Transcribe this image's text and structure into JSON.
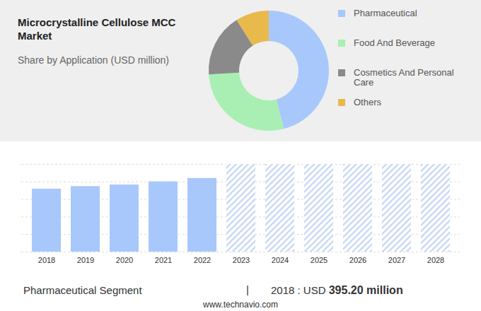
{
  "chart_data": [
    {
      "type": "donut",
      "title": "Microcrystalline Cellulose MCC Market",
      "subtitle": "Share by Application (USD million)",
      "categories": [
        "Pharmaceutical",
        "Food And Beverage",
        "Cosmetics And Personal Care",
        "Others"
      ],
      "values": [
        46,
        28,
        17,
        9
      ],
      "colors": [
        "#a8c8fb",
        "#a9efb3",
        "#8a8a8a",
        "#e8b94b"
      ],
      "legend": "right"
    },
    {
      "type": "bar",
      "categories": [
        "2018",
        "2019",
        "2020",
        "2021",
        "2022",
        "2023",
        "2024",
        "2025",
        "2026",
        "2027",
        "2028"
      ],
      "values": [
        395.2,
        411,
        421,
        441,
        462,
        550,
        550,
        550,
        550,
        550,
        550
      ],
      "colors": [
        "#a8c8fb",
        "#a8c8fb",
        "#a8c8fb",
        "#a8c8fb",
        "#a8c8fb",
        "#c3d6f7",
        "#c3d6f7",
        "#c3d6f7",
        "#c3d6f7",
        "#c3d6f7",
        "#c3d6f7"
      ],
      "ylim": [
        0,
        550
      ],
      "yticks": [
        0,
        110,
        220,
        330,
        440,
        550
      ],
      "grid": true,
      "tick_labels": "x",
      "footer": {
        "label": "Pharmaceutical Segment",
        "separator": "|",
        "prefix": "2018 : USD",
        "value": "395.20 million"
      },
      "source": "www.technavio.com"
    }
  ]
}
